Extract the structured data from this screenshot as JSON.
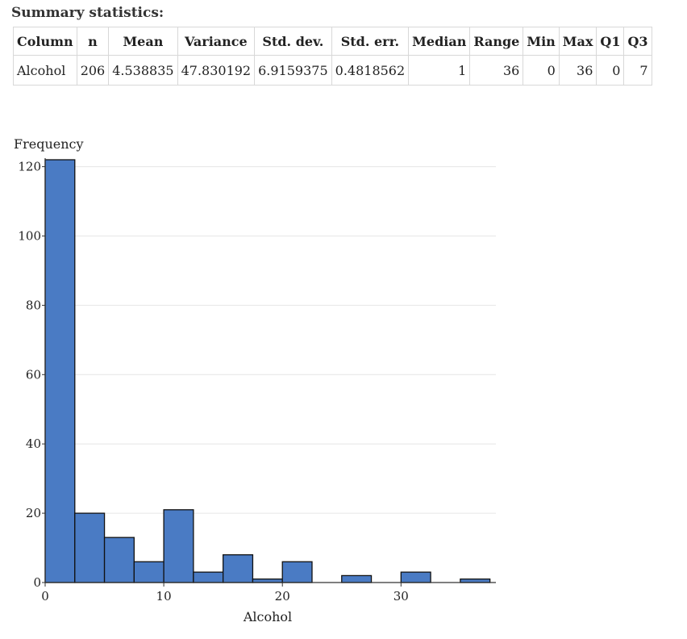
{
  "heading": "Summary statistics:",
  "summary": {
    "headers": [
      "Column",
      "n",
      "Mean",
      "Variance",
      "Std. dev.",
      "Std. err.",
      "Median",
      "Range",
      "Min",
      "Max",
      "Q1",
      "Q3"
    ],
    "rows": [
      [
        "Alcohol",
        "206",
        "4.538835",
        "47.830192",
        "6.9159375",
        "0.4818562",
        "1",
        "36",
        "0",
        "36",
        "0",
        "7"
      ]
    ]
  },
  "chart_data": {
    "type": "bar",
    "subtype": "histogram",
    "xlabel": "Alcohol",
    "ylabel": "Frequency",
    "xlim": [
      0,
      38
    ],
    "ylim": [
      0,
      122
    ],
    "bin_width": 2.5,
    "bins": [
      {
        "start": 0,
        "end": 2.5,
        "count": 122
      },
      {
        "start": 2.5,
        "end": 5,
        "count": 20
      },
      {
        "start": 5,
        "end": 7.5,
        "count": 13
      },
      {
        "start": 7.5,
        "end": 10,
        "count": 6
      },
      {
        "start": 10,
        "end": 12.5,
        "count": 21
      },
      {
        "start": 12.5,
        "end": 15,
        "count": 3
      },
      {
        "start": 15,
        "end": 17.5,
        "count": 8
      },
      {
        "start": 17.5,
        "end": 20,
        "count": 1
      },
      {
        "start": 20,
        "end": 22.5,
        "count": 6
      },
      {
        "start": 22.5,
        "end": 25,
        "count": 0
      },
      {
        "start": 25,
        "end": 27.5,
        "count": 2
      },
      {
        "start": 27.5,
        "end": 30,
        "count": 0
      },
      {
        "start": 30,
        "end": 32.5,
        "count": 3
      },
      {
        "start": 32.5,
        "end": 35,
        "count": 0
      },
      {
        "start": 35,
        "end": 37.5,
        "count": 1
      }
    ],
    "xticks": [
      0,
      10,
      20,
      30
    ],
    "yticks": [
      0,
      20,
      40,
      60,
      80,
      100,
      120
    ],
    "grid": true,
    "bar_color": "#4a7bc4",
    "bar_stroke": "#111111"
  }
}
